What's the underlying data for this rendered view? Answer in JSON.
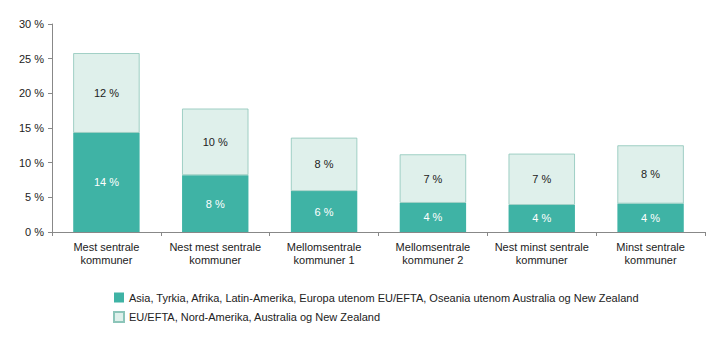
{
  "chart_data": {
    "type": "bar",
    "stacked": true,
    "data_labels": true,
    "grid": false,
    "legend": "bottom",
    "categories": [
      "Mest sentrale\nkommuner",
      "Nest mest sentrale\nkommuner",
      "Mellomsentrale\nkommuner 1",
      "Mellomsentrale\nkommuner 2",
      "Nest minst sentrale\nkommuner",
      "Minst sentrale\nkommuner"
    ],
    "series": [
      {
        "name": "Asia, Tyrkia, Afrika, Latin-Amerika, Europa utenom EU/EFTA, Oseania utenom Australia og New Zealand",
        "color": "#3fb3a5",
        "values": [
          14.3,
          8.2,
          5.9,
          4.2,
          3.9,
          4.1
        ],
        "value_labels": [
          "14 %",
          "8 %",
          "6 %",
          "4 %",
          "4 %",
          "4 %"
        ]
      },
      {
        "name": "EU/EFTA, Nord-Amerika, Australia og New Zealand",
        "color": "#dff0eb",
        "values": [
          11.5,
          9.6,
          7.7,
          7.0,
          7.4,
          8.4
        ],
        "value_labels": [
          "12 %",
          "10 %",
          "8 %",
          "7 %",
          "7 %",
          "8 %"
        ]
      }
    ],
    "ylim": [
      0,
      30
    ],
    "yticks": [
      {
        "value": 0,
        "label": "0 %"
      },
      {
        "value": 5,
        "label": "5 %"
      },
      {
        "value": 10,
        "label": "10 %"
      },
      {
        "value": 15,
        "label": "15 %"
      },
      {
        "value": 20,
        "label": "20 %"
      },
      {
        "value": 25,
        "label": "25 %"
      },
      {
        "value": 30,
        "label": "30 %"
      }
    ]
  }
}
